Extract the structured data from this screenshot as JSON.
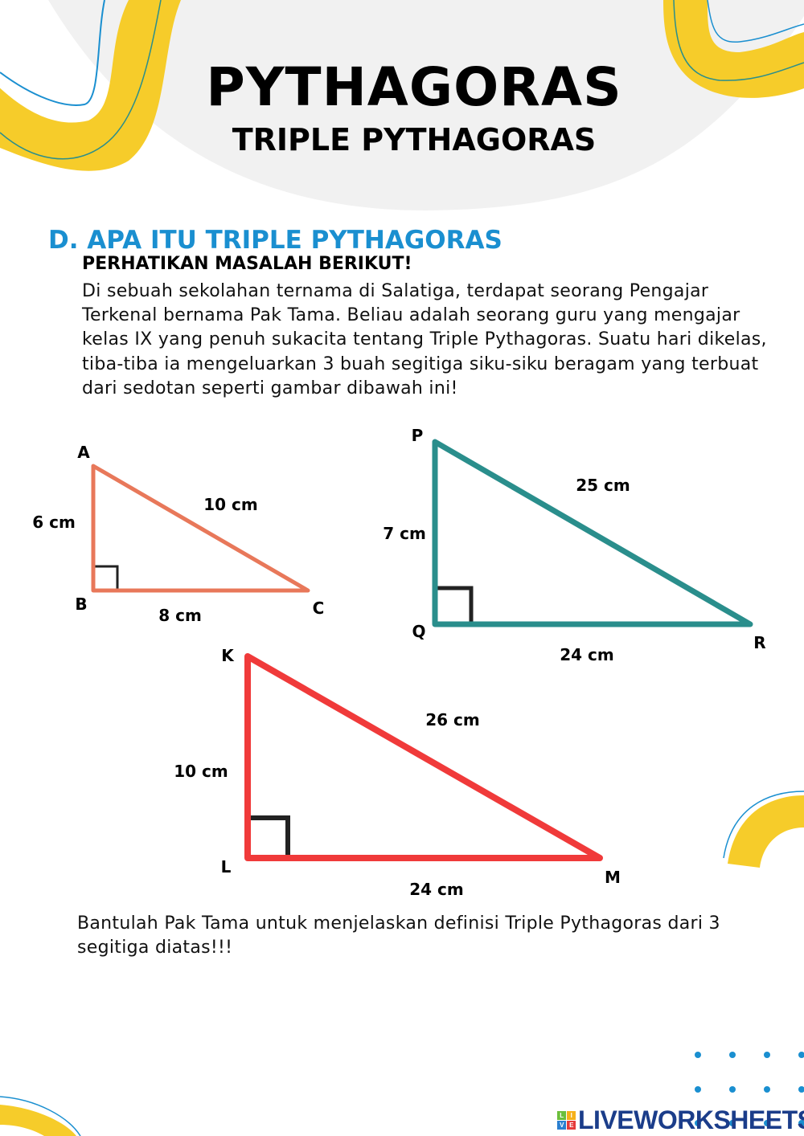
{
  "header": {
    "title": "PYTHAGORAS",
    "subtitle": "TRIPLE PYTHAGORAS"
  },
  "section": {
    "heading": "D. APA ITU TRIPLE PYTHAGORAS",
    "subheading": "PERHATIKAN MASALAH BERIKUT!",
    "story": "Di sebuah sekolahan ternama di Salatiga, terdapat seorang Pengajar Terkenal bernama Pak Tama. Beliau adalah seorang guru yang mengajar kelas IX yang penuh sukacita tentang Triple Pythagoras. Suatu hari dikelas, tiba-tiba ia mengeluarkan 3 buah segitiga siku-siku beragam yang terbuat dari sedotan seperti gambar dibawah ini!",
    "question": "Bantulah Pak Tama untuk menjelaskan definisi Triple Pythagoras dari 3 segitiga diatas!!!"
  },
  "triangles": [
    {
      "color": "#e8785a",
      "vertices": [
        "A",
        "B",
        "C"
      ],
      "sides": {
        "vertical": "6 cm",
        "hypotenuse": "10 cm",
        "horizontal": "8 cm"
      }
    },
    {
      "color": "#2a8e8c",
      "vertices": [
        "P",
        "Q",
        "R"
      ],
      "sides": {
        "vertical": "7 cm",
        "hypotenuse": "25 cm",
        "horizontal": "24 cm"
      }
    },
    {
      "color": "#f03a3a",
      "vertices": [
        "K",
        "L",
        "M"
      ],
      "sides": {
        "vertical": "10 cm",
        "hypotenuse": "26 cm",
        "horizontal": "24 cm"
      }
    }
  ],
  "footer": {
    "logo": "LIVEWORKSHEETS",
    "logo_letters": [
      "L",
      "I",
      "V",
      "E"
    ]
  },
  "colors": {
    "accent_yellow": "#f6cc2a",
    "accent_blue": "#1a8fd0",
    "dots": "#1a8fd0"
  }
}
